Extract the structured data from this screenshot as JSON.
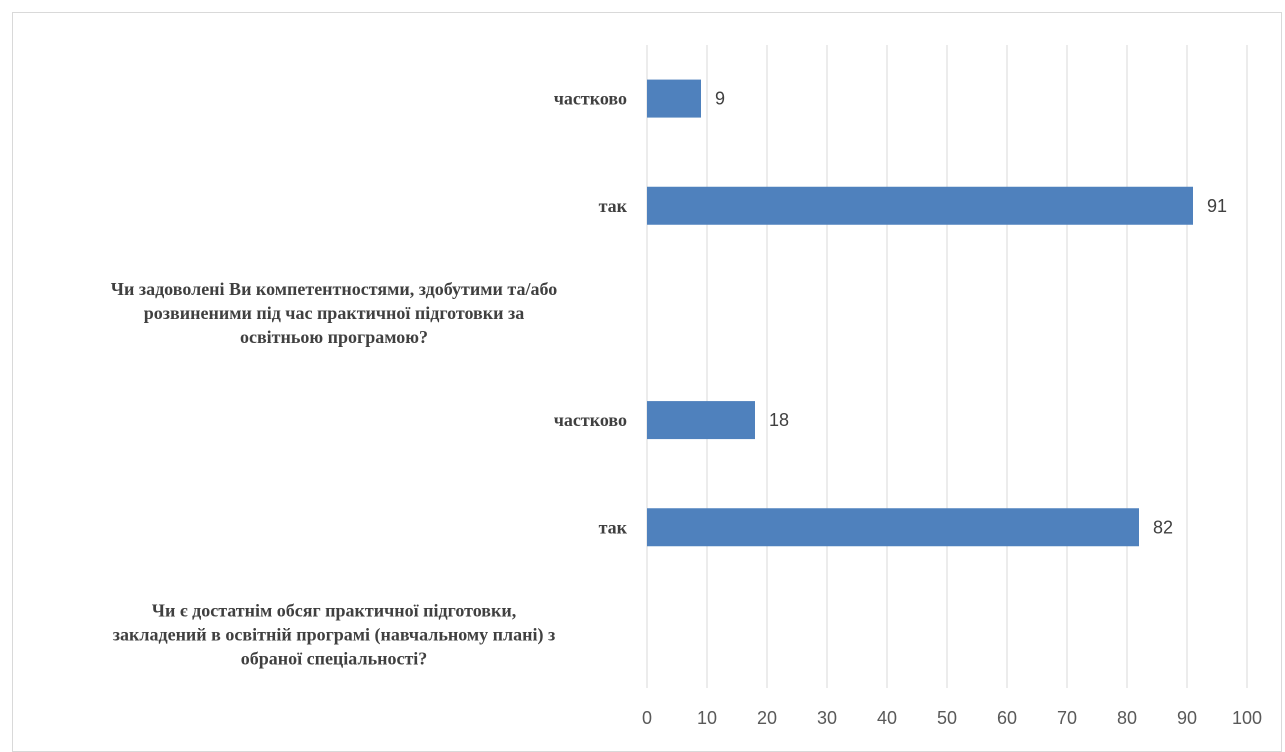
{
  "chart_data": {
    "type": "bar",
    "orientation": "horizontal",
    "categories": [
      "частково",
      "так",
      "Чи задоволені Ви компетентностями, здобутими та/або розвиненими під час практичної підготовки за освітньою програмою?",
      "частково",
      "так",
      "Чи є достатнім обсяг практичної підготовки, закладений в освітній програмі (навчальному плані) з обраної спеціальності?"
    ],
    "question_lines": [
      [
        "Чи задоволені Ви компетентностями, здобутими та/або",
        "розвиненими під час практичної підготовки за",
        "освітньою програмою?"
      ],
      [
        "Чи є достатнім обсяг практичної підготовки,",
        "закладений в освітній програмі (навчальному плані) з",
        "обраної спеціальності?"
      ]
    ],
    "values": [
      9,
      91,
      null,
      18,
      82,
      null
    ],
    "bar_color": "#4f81bd",
    "xlim": [
      0,
      100
    ],
    "xticks": [
      0,
      10,
      20,
      30,
      40,
      50,
      60,
      70,
      80,
      90,
      100
    ],
    "grid": "vertical",
    "title": "",
    "xlabel": "",
    "ylabel": ""
  }
}
